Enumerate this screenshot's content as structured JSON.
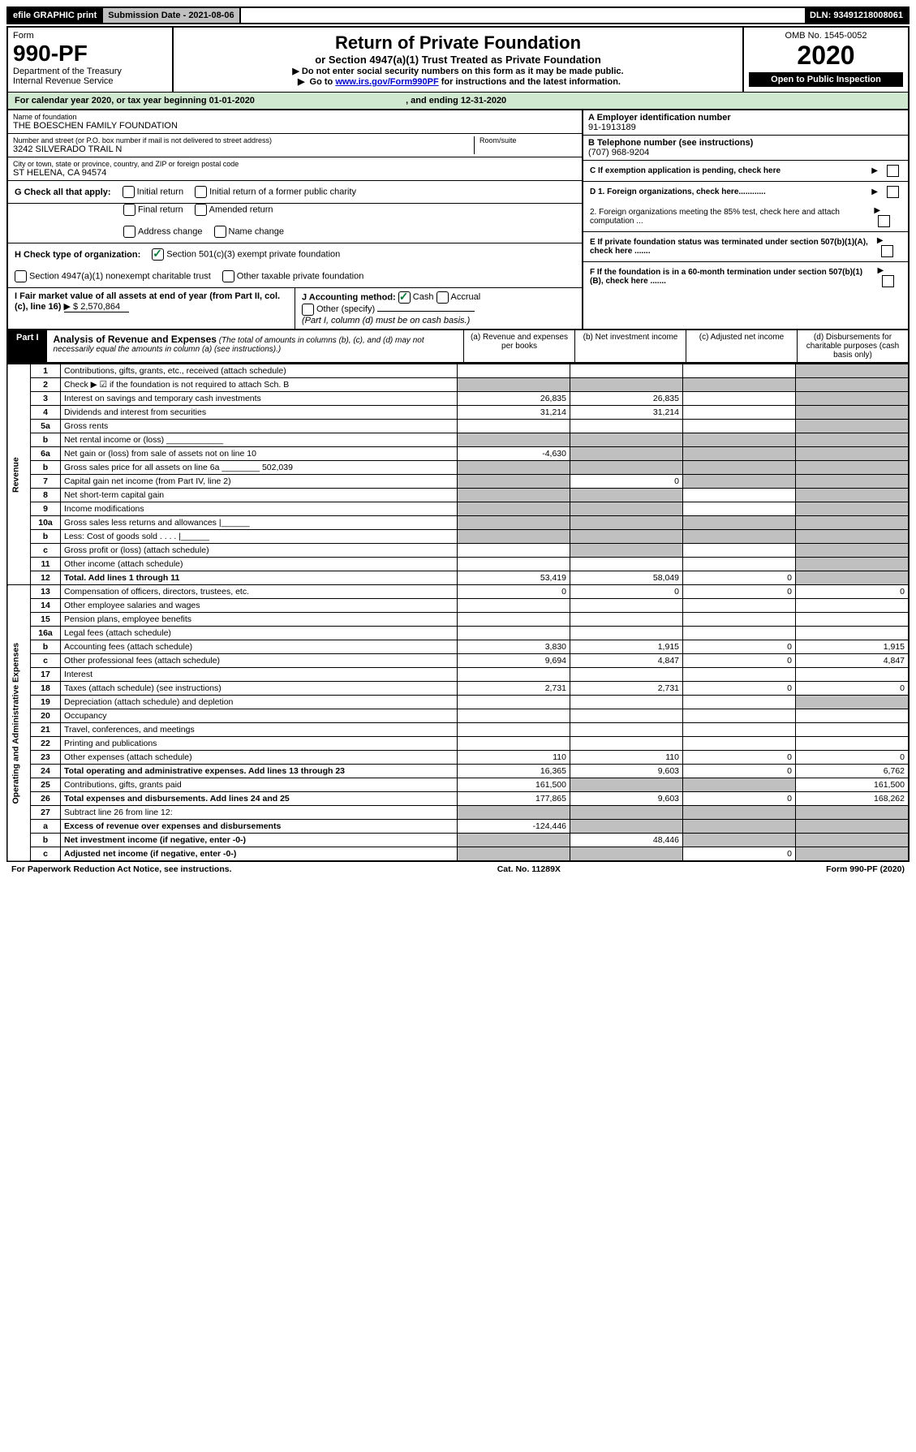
{
  "topbar": {
    "efile": "efile GRAPHIC print",
    "submission_label": "Submission Date - 2021-08-06",
    "dln_label": "DLN: 93491218008061"
  },
  "header": {
    "form_label": "Form",
    "form_number": "990-PF",
    "dept": "Department of the Treasury",
    "irs": "Internal Revenue Service",
    "title": "Return of Private Foundation",
    "subtitle": "or Section 4947(a)(1) Trust Treated as Private Foundation",
    "note1": "Do not enter social security numbers on this form as it may be made public.",
    "note2_pre": "Go to ",
    "note2_link": "www.irs.gov/Form990PF",
    "note2_post": " for instructions and the latest information.",
    "omb": "OMB No. 1545-0052",
    "year": "2020",
    "open": "Open to Public Inspection"
  },
  "calendar": {
    "text_pre": "For calendar year 2020, or tax year beginning ",
    "begin": "01-01-2020",
    "text_mid": " , and ending ",
    "end": "12-31-2020"
  },
  "entity": {
    "name_label": "Name of foundation",
    "name": "THE BOESCHEN FAMILY FOUNDATION",
    "addr_label": "Number and street (or P.O. box number if mail is not delivered to street address)",
    "addr": "3242 SILVERADO TRAIL N",
    "room_label": "Room/suite",
    "city_label": "City or town, state or province, country, and ZIP or foreign postal code",
    "city": "ST HELENA, CA  94574",
    "ein_label": "A Employer identification number",
    "ein": "91-1913189",
    "phone_label": "B Telephone number (see instructions)",
    "phone": "(707) 968-9204",
    "c_label": "C If exemption application is pending, check here",
    "d1": "D 1. Foreign organizations, check here............",
    "d2": "2. Foreign organizations meeting the 85% test, check here and attach computation ...",
    "e_label": "E  If private foundation status was terminated under section 507(b)(1)(A), check here .......",
    "f_label": "F  If the foundation is in a 60-month termination under section 507(b)(1)(B), check here ......."
  },
  "checks": {
    "g_label": "G Check all that apply:",
    "initial": "Initial return",
    "initial_former": "Initial return of a former public charity",
    "final": "Final return",
    "amended": "Amended return",
    "addr_change": "Address change",
    "name_change": "Name change",
    "h_label": "H Check type of organization:",
    "h_501c3": "Section 501(c)(3) exempt private foundation",
    "h_4947": "Section 4947(a)(1) nonexempt charitable trust",
    "h_other": "Other taxable private foundation",
    "i_label": "I Fair market value of all assets at end of year (from Part II, col. (c), line 16)",
    "i_value": "$  2,570,864",
    "j_label": "J Accounting method:",
    "j_cash": "Cash",
    "j_accrual": "Accrual",
    "j_other": "Other (specify)",
    "j_note": "(Part I, column (d) must be on cash basis.)"
  },
  "part1": {
    "label": "Part I",
    "title": "Analysis of Revenue and Expenses",
    "title_note": "(The total of amounts in columns (b), (c), and (d) may not necessarily equal the amounts in column (a) (see instructions).)",
    "col_a": "(a)    Revenue and expenses per books",
    "col_b": "(b)   Net investment income",
    "col_c": "(c)   Adjusted net income",
    "col_d": "(d)   Disbursements for charitable purposes (cash basis only)"
  },
  "side_labels": {
    "revenue": "Revenue",
    "expenses": "Operating and Administrative Expenses"
  },
  "rows": [
    {
      "n": "1",
      "desc": "Contributions, gifts, grants, etc., received (attach schedule)",
      "a": "",
      "b": "",
      "c": "",
      "d": "",
      "shaded": [
        "d"
      ]
    },
    {
      "n": "2",
      "desc": "Check ▶ ☑ if the foundation is not required to attach Sch. B",
      "a": "",
      "b": "",
      "c": "",
      "d": "",
      "shaded": [
        "a",
        "b",
        "c",
        "d"
      ]
    },
    {
      "n": "3",
      "desc": "Interest on savings and temporary cash investments",
      "a": "26,835",
      "b": "26,835",
      "c": "",
      "d": "",
      "shaded": [
        "d"
      ]
    },
    {
      "n": "4",
      "desc": "Dividends and interest from securities",
      "a": "31,214",
      "b": "31,214",
      "c": "",
      "d": "",
      "shaded": [
        "d"
      ]
    },
    {
      "n": "5a",
      "desc": "Gross rents",
      "a": "",
      "b": "",
      "c": "",
      "d": "",
      "shaded": [
        "d"
      ]
    },
    {
      "n": "b",
      "desc": "Net rental income or (loss)   ____________",
      "a": "",
      "b": "",
      "c": "",
      "d": "",
      "shaded": [
        "a",
        "b",
        "c",
        "d"
      ]
    },
    {
      "n": "6a",
      "desc": "Net gain or (loss) from sale of assets not on line 10",
      "a": "-4,630",
      "b": "",
      "c": "",
      "d": "",
      "shaded": [
        "b",
        "c",
        "d"
      ]
    },
    {
      "n": "b",
      "desc": "Gross sales price for all assets on line 6a ________ 502,039",
      "a": "",
      "b": "",
      "c": "",
      "d": "",
      "shaded": [
        "a",
        "b",
        "c",
        "d"
      ]
    },
    {
      "n": "7",
      "desc": "Capital gain net income (from Part IV, line 2)",
      "a": "",
      "b": "0",
      "c": "",
      "d": "",
      "shaded": [
        "a",
        "c",
        "d"
      ]
    },
    {
      "n": "8",
      "desc": "Net short-term capital gain",
      "a": "",
      "b": "",
      "c": "",
      "d": "",
      "shaded": [
        "a",
        "b",
        "d"
      ]
    },
    {
      "n": "9",
      "desc": "Income modifications",
      "a": "",
      "b": "",
      "c": "",
      "d": "",
      "shaded": [
        "a",
        "b",
        "d"
      ]
    },
    {
      "n": "10a",
      "desc": "Gross sales less returns and allowances  |______",
      "a": "",
      "b": "",
      "c": "",
      "d": "",
      "shaded": [
        "a",
        "b",
        "c",
        "d"
      ]
    },
    {
      "n": "b",
      "desc": "Less: Cost of goods sold    . . . .  |______",
      "a": "",
      "b": "",
      "c": "",
      "d": "",
      "shaded": [
        "a",
        "b",
        "c",
        "d"
      ]
    },
    {
      "n": "c",
      "desc": "Gross profit or (loss) (attach schedule)",
      "a": "",
      "b": "",
      "c": "",
      "d": "",
      "shaded": [
        "b",
        "d"
      ]
    },
    {
      "n": "11",
      "desc": "Other income (attach schedule)",
      "a": "",
      "b": "",
      "c": "",
      "d": "",
      "shaded": [
        "d"
      ]
    },
    {
      "n": "12",
      "desc": "Total. Add lines 1 through 11",
      "a": "53,419",
      "b": "58,049",
      "c": "0",
      "d": "",
      "shaded": [
        "d"
      ],
      "bold": true
    },
    {
      "n": "13",
      "desc": "Compensation of officers, directors, trustees, etc.",
      "a": "0",
      "b": "0",
      "c": "0",
      "d": "0"
    },
    {
      "n": "14",
      "desc": "Other employee salaries and wages",
      "a": "",
      "b": "",
      "c": "",
      "d": ""
    },
    {
      "n": "15",
      "desc": "Pension plans, employee benefits",
      "a": "",
      "b": "",
      "c": "",
      "d": ""
    },
    {
      "n": "16a",
      "desc": "Legal fees (attach schedule)",
      "a": "",
      "b": "",
      "c": "",
      "d": ""
    },
    {
      "n": "b",
      "desc": "Accounting fees (attach schedule)",
      "a": "3,830",
      "b": "1,915",
      "c": "0",
      "d": "1,915"
    },
    {
      "n": "c",
      "desc": "Other professional fees (attach schedule)",
      "a": "9,694",
      "b": "4,847",
      "c": "0",
      "d": "4,847"
    },
    {
      "n": "17",
      "desc": "Interest",
      "a": "",
      "b": "",
      "c": "",
      "d": ""
    },
    {
      "n": "18",
      "desc": "Taxes (attach schedule) (see instructions)",
      "a": "2,731",
      "b": "2,731",
      "c": "0",
      "d": "0"
    },
    {
      "n": "19",
      "desc": "Depreciation (attach schedule) and depletion",
      "a": "",
      "b": "",
      "c": "",
      "d": "",
      "shaded": [
        "d"
      ]
    },
    {
      "n": "20",
      "desc": "Occupancy",
      "a": "",
      "b": "",
      "c": "",
      "d": ""
    },
    {
      "n": "21",
      "desc": "Travel, conferences, and meetings",
      "a": "",
      "b": "",
      "c": "",
      "d": ""
    },
    {
      "n": "22",
      "desc": "Printing and publications",
      "a": "",
      "b": "",
      "c": "",
      "d": ""
    },
    {
      "n": "23",
      "desc": "Other expenses (attach schedule)",
      "a": "110",
      "b": "110",
      "c": "0",
      "d": "0"
    },
    {
      "n": "24",
      "desc": "Total operating and administrative expenses. Add lines 13 through 23",
      "a": "16,365",
      "b": "9,603",
      "c": "0",
      "d": "6,762",
      "bold": true
    },
    {
      "n": "25",
      "desc": "Contributions, gifts, grants paid",
      "a": "161,500",
      "b": "",
      "c": "",
      "d": "161,500",
      "shaded": [
        "b",
        "c"
      ]
    },
    {
      "n": "26",
      "desc": "Total expenses and disbursements. Add lines 24 and 25",
      "a": "177,865",
      "b": "9,603",
      "c": "0",
      "d": "168,262",
      "bold": true
    },
    {
      "n": "27",
      "desc": "Subtract line 26 from line 12:",
      "a": "",
      "b": "",
      "c": "",
      "d": "",
      "shaded": [
        "a",
        "b",
        "c",
        "d"
      ]
    },
    {
      "n": "a",
      "desc": "Excess of revenue over expenses and disbursements",
      "a": "-124,446",
      "b": "",
      "c": "",
      "d": "",
      "shaded": [
        "b",
        "c",
        "d"
      ],
      "bold": true
    },
    {
      "n": "b",
      "desc": "Net investment income (if negative, enter -0-)",
      "a": "",
      "b": "48,446",
      "c": "",
      "d": "",
      "shaded": [
        "a",
        "c",
        "d"
      ],
      "bold": true
    },
    {
      "n": "c",
      "desc": "Adjusted net income (if negative, enter -0-)",
      "a": "",
      "b": "",
      "c": "0",
      "d": "",
      "shaded": [
        "a",
        "b",
        "d"
      ],
      "bold": true
    }
  ],
  "footer": {
    "left": "For Paperwork Reduction Act Notice, see instructions.",
    "center": "Cat. No. 11289X",
    "right": "Form 990-PF (2020)"
  }
}
